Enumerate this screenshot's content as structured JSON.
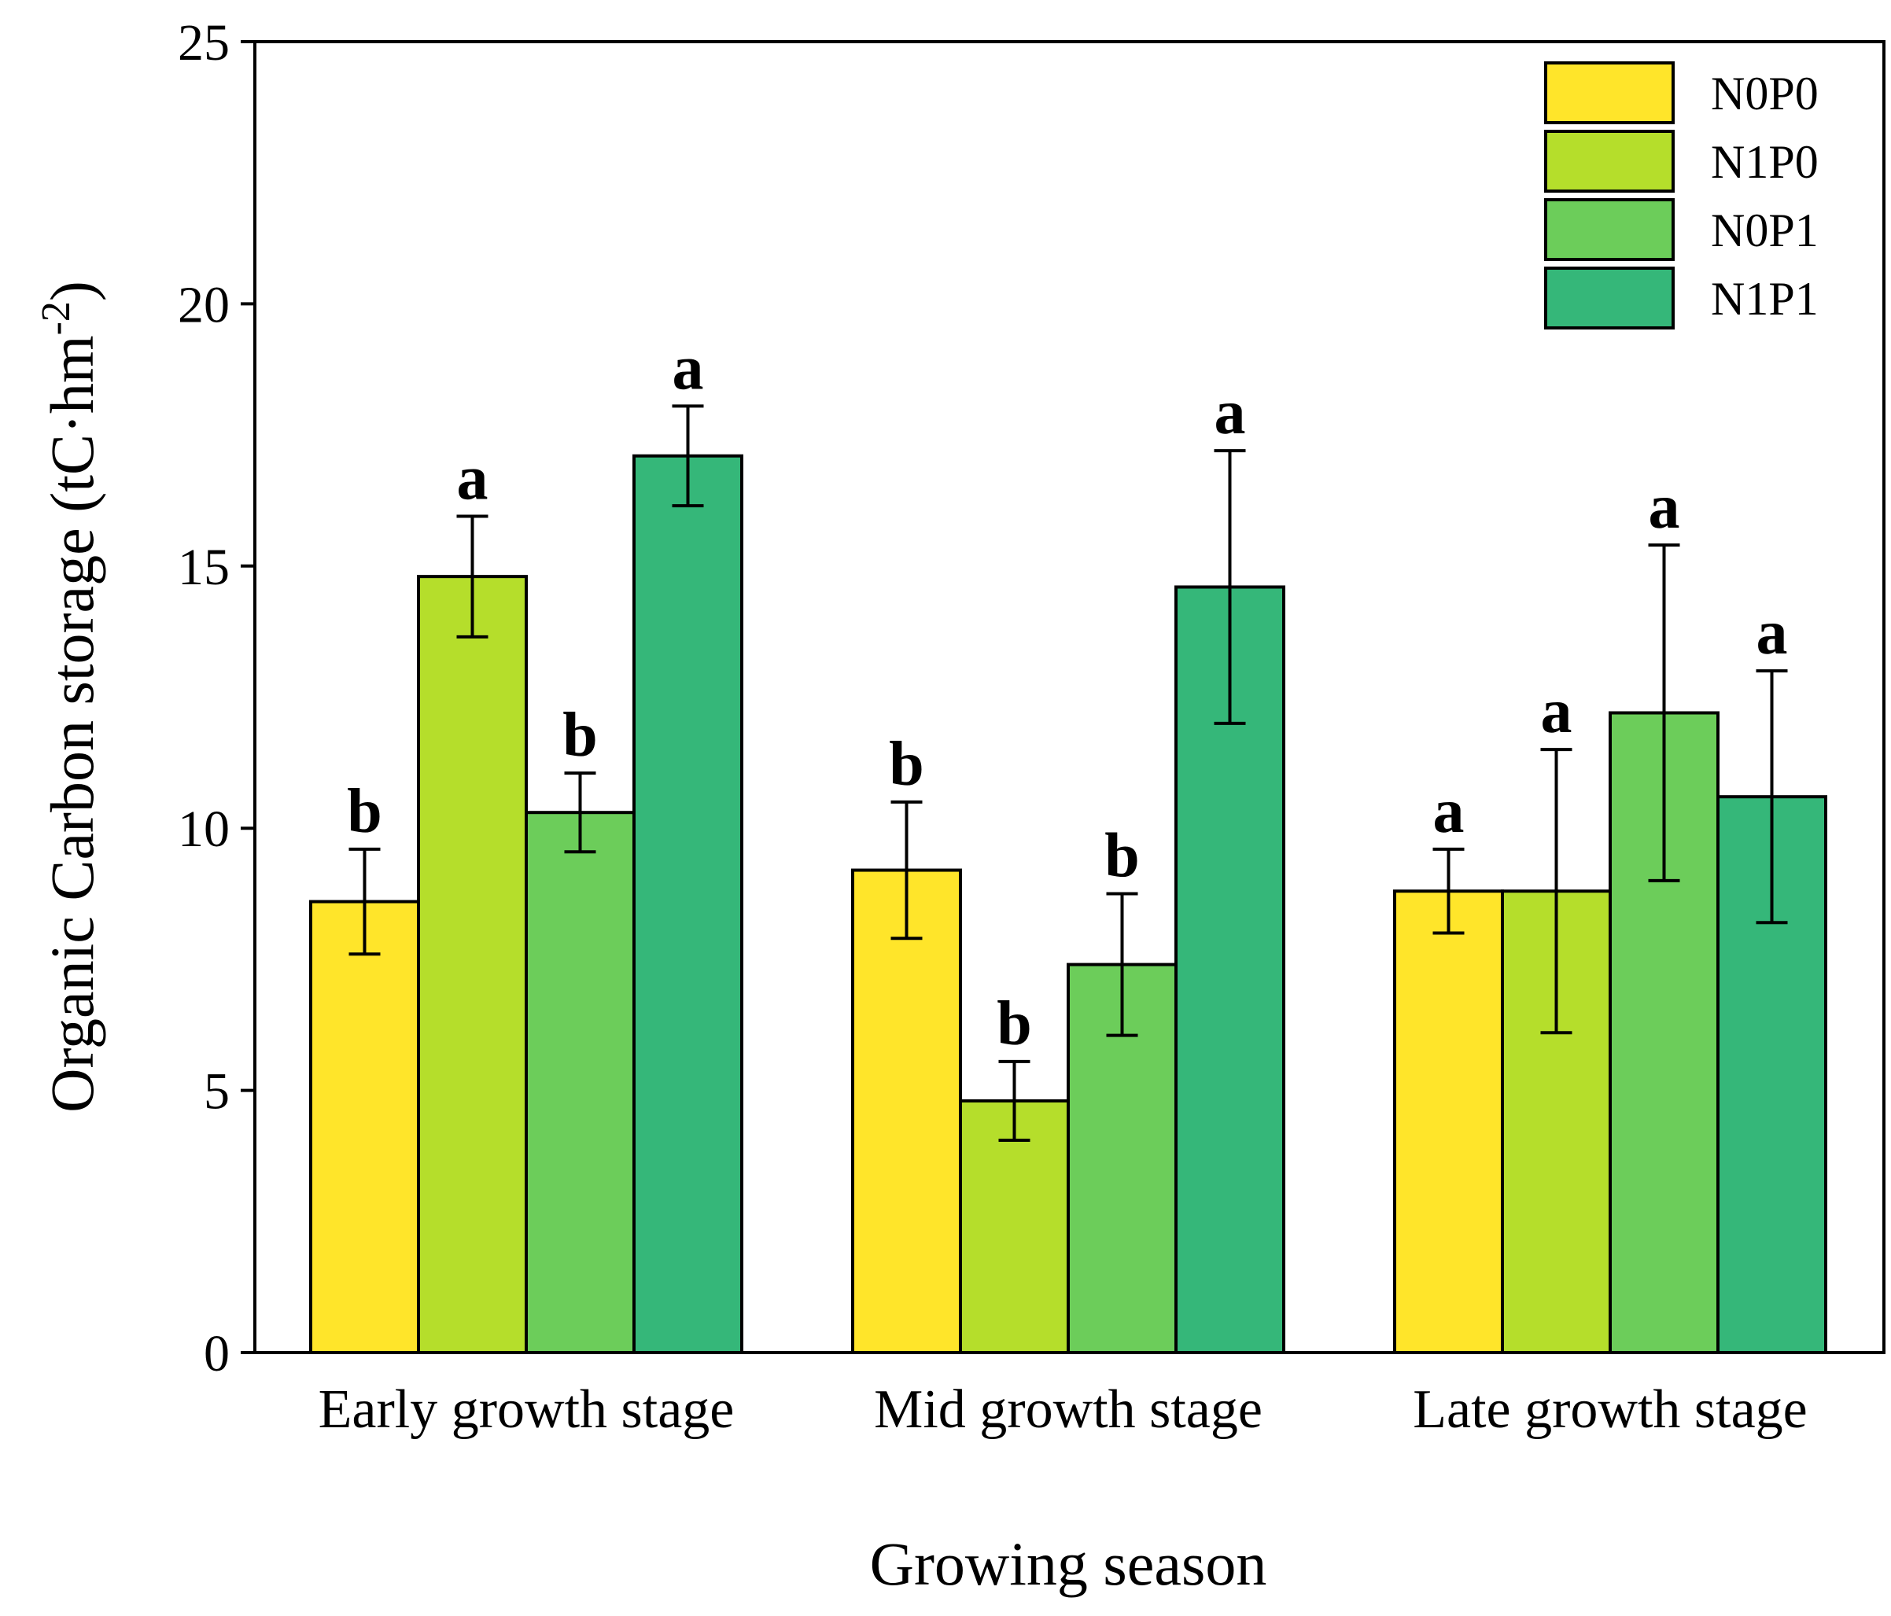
{
  "chart_data": {
    "type": "bar",
    "title": "",
    "xlabel": "Growing season",
    "ylabel_main": "Organic Carbon storage (tC·hm",
    "ylabel_sup": "-2",
    "ylabel_close": ")",
    "ylim": [
      0,
      25
    ],
    "yticks": [
      0,
      5,
      10,
      15,
      20,
      25
    ],
    "categories": [
      "Early growth stage",
      "Mid growth stage",
      "Late growth stage"
    ],
    "legend_position": "top-right",
    "series": [
      {
        "name": "N0P0",
        "color": "#FFE52A",
        "values": [
          8.6,
          9.2,
          8.8
        ],
        "errors": [
          1.0,
          1.3,
          0.8
        ],
        "labels": [
          "b",
          "b",
          "a"
        ]
      },
      {
        "name": "N1P0",
        "color": "#B5DE2B",
        "values": [
          14.8,
          4.8,
          8.8
        ],
        "errors": [
          1.15,
          0.75,
          2.7
        ],
        "labels": [
          "a",
          "b",
          "a"
        ]
      },
      {
        "name": "N0P1",
        "color": "#6CCD5A",
        "values": [
          10.3,
          7.4,
          12.2
        ],
        "errors": [
          0.75,
          1.35,
          3.2
        ],
        "labels": [
          "b",
          "b",
          "a"
        ]
      },
      {
        "name": "N1P1",
        "color": "#35B779",
        "values": [
          17.1,
          14.6,
          10.6
        ],
        "errors": [
          0.95,
          2.6,
          2.4
        ],
        "labels": [
          "a",
          "a",
          "a"
        ]
      }
    ]
  }
}
